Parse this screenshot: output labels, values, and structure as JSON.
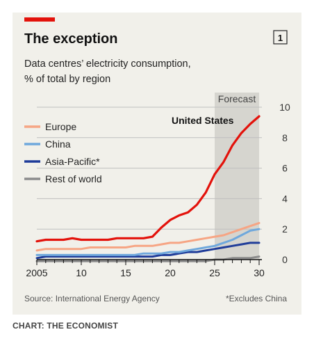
{
  "chart_number": "1",
  "credit": "CHART: THE ECONOMIST",
  "chart_data": {
    "type": "line",
    "title": "The exception",
    "subtitle_lines": [
      "Data centres’ electricity consumption,",
      "% of total by region"
    ],
    "forecast_label": "Forecast",
    "forecast_range": [
      2025,
      2030
    ],
    "source": "Source: International Energy Agency",
    "footnote": "*Excludes China",
    "x_tick_labels": [
      "2005",
      "10",
      "15",
      "20",
      "25",
      "30"
    ],
    "x_ticks": [
      2005,
      2010,
      2015,
      2020,
      2025,
      2030
    ],
    "y_ticks": [
      0,
      2,
      4,
      6,
      8,
      10
    ],
    "xlim": [
      2005,
      2030
    ],
    "ylim": [
      0,
      10
    ],
    "grid": true,
    "legend_position": "left",
    "x": [
      2005,
      2006,
      2007,
      2008,
      2009,
      2010,
      2011,
      2012,
      2013,
      2014,
      2015,
      2016,
      2017,
      2018,
      2019,
      2020,
      2021,
      2022,
      2023,
      2024,
      2025,
      2026,
      2027,
      2028,
      2029,
      2030
    ],
    "series": [
      {
        "name": "United States",
        "color": "#e3120b",
        "label_on_chart": true,
        "values": [
          1.2,
          1.3,
          1.3,
          1.3,
          1.4,
          1.3,
          1.3,
          1.3,
          1.3,
          1.4,
          1.4,
          1.4,
          1.4,
          1.5,
          2.1,
          2.6,
          2.9,
          3.1,
          3.6,
          4.4,
          5.6,
          6.4,
          7.5,
          8.3,
          8.9,
          9.4
        ]
      },
      {
        "name": "Europe",
        "color": "#f6a584",
        "values": [
          0.6,
          0.7,
          0.7,
          0.7,
          0.7,
          0.7,
          0.8,
          0.8,
          0.8,
          0.8,
          0.8,
          0.9,
          0.9,
          0.9,
          1.0,
          1.1,
          1.1,
          1.2,
          1.3,
          1.4,
          1.5,
          1.6,
          1.8,
          2.0,
          2.2,
          2.4
        ]
      },
      {
        "name": "China",
        "color": "#6fa8dc",
        "values": [
          0.3,
          0.3,
          0.3,
          0.3,
          0.3,
          0.3,
          0.3,
          0.3,
          0.3,
          0.3,
          0.3,
          0.3,
          0.4,
          0.4,
          0.4,
          0.5,
          0.5,
          0.6,
          0.7,
          0.8,
          0.9,
          1.1,
          1.3,
          1.6,
          1.9,
          2.0
        ]
      },
      {
        "name": "Asia-Pacific*",
        "color": "#1f3c99",
        "values": [
          0.1,
          0.2,
          0.2,
          0.2,
          0.2,
          0.2,
          0.2,
          0.2,
          0.2,
          0.2,
          0.2,
          0.2,
          0.2,
          0.2,
          0.3,
          0.3,
          0.4,
          0.5,
          0.5,
          0.6,
          0.7,
          0.8,
          0.9,
          1.0,
          1.1,
          1.1
        ]
      },
      {
        "name": "Rest of world",
        "color": "#8c8c8c",
        "values": [
          -0.1,
          -0.1,
          -0.1,
          -0.1,
          -0.1,
          -0.1,
          -0.1,
          -0.1,
          -0.1,
          -0.1,
          -0.1,
          -0.1,
          -0.1,
          -0.1,
          -0.1,
          -0.1,
          -0.1,
          -0.1,
          -0.1,
          -0.1,
          0.0,
          0.0,
          0.1,
          0.1,
          0.1,
          0.2
        ]
      }
    ]
  }
}
